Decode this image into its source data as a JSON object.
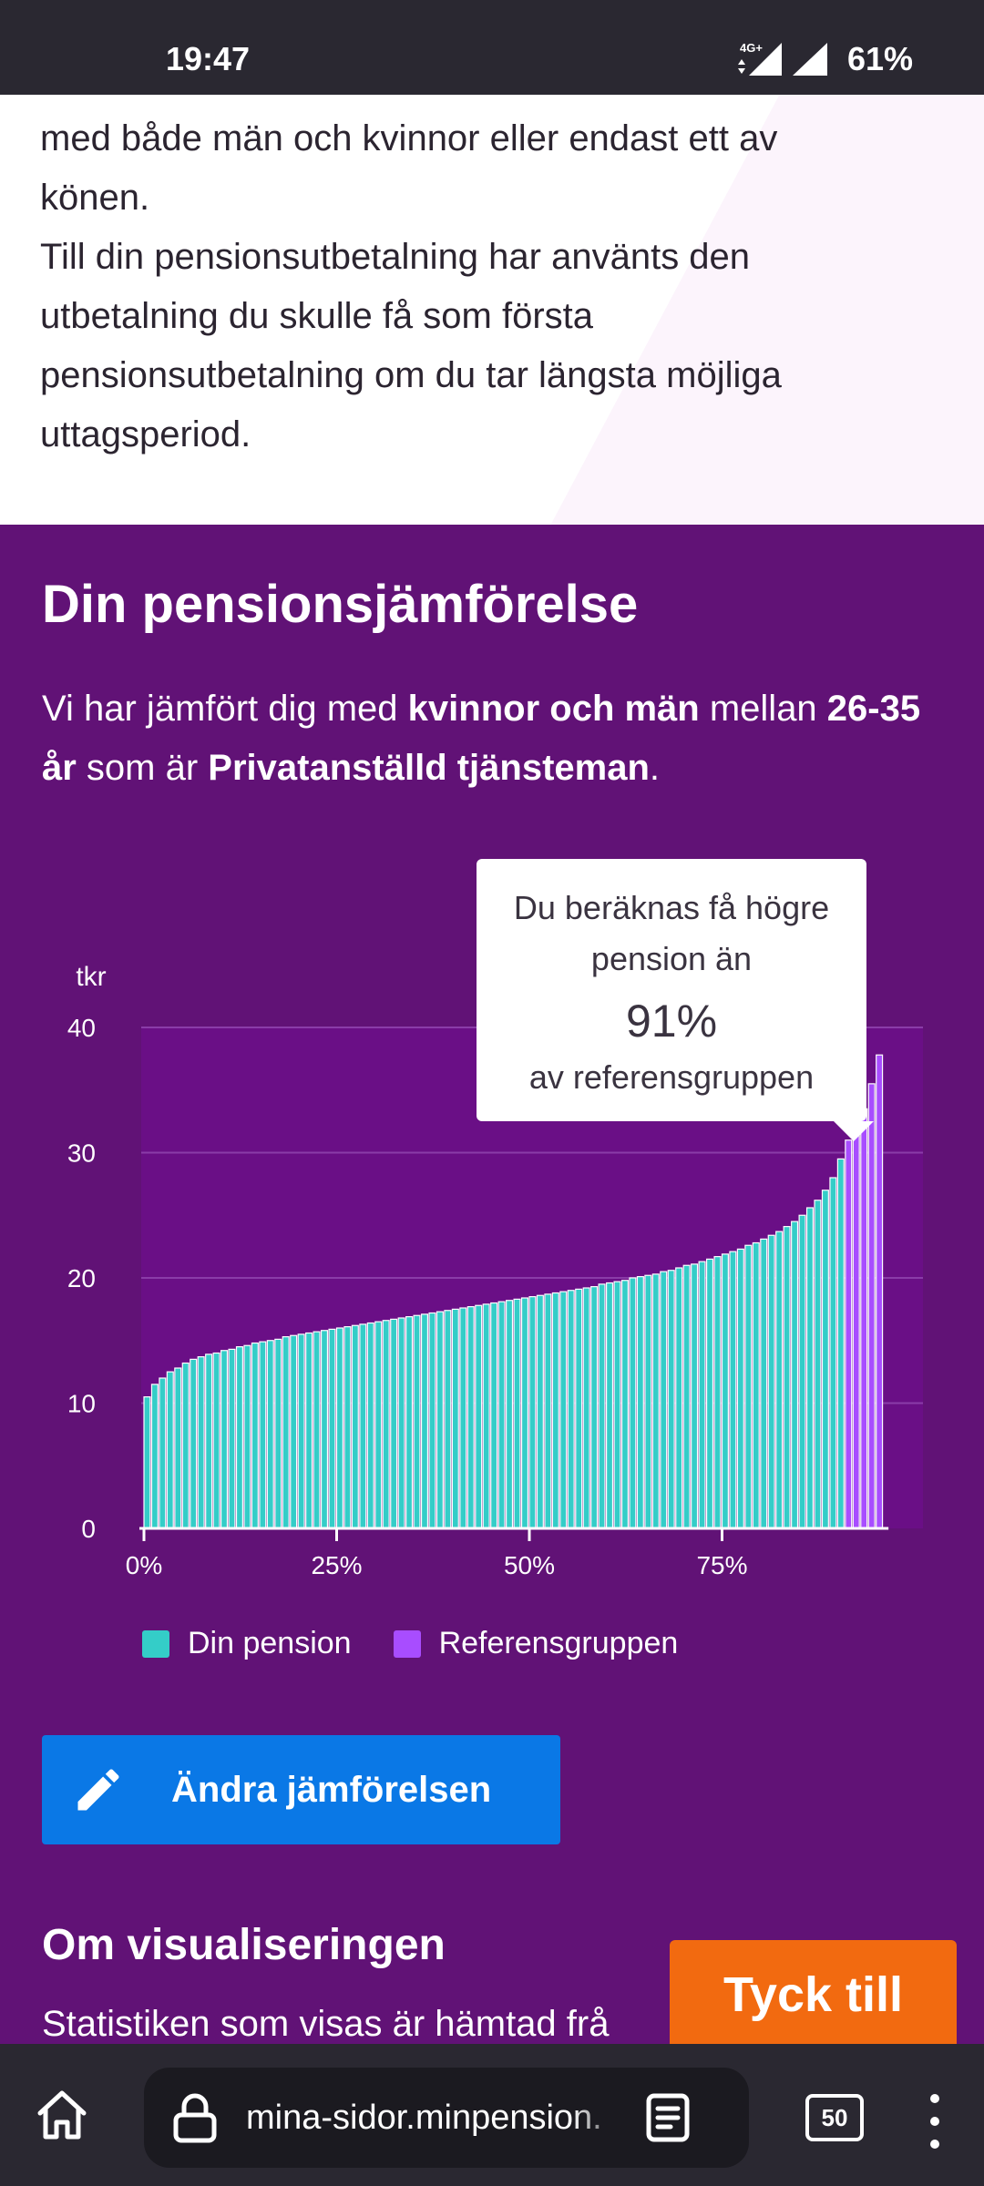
{
  "status_bar": {
    "time": "19:47",
    "network": "4G+",
    "battery": "61%"
  },
  "white_section": {
    "lines": [
      "med både män och kvinnor eller endast ett av",
      "könen.",
      "Till din pensionsutbetalning har använts den",
      "utbetalning du skulle få som första",
      "pensionsutbetalning om du tar längsta möjliga",
      "uttagsperiod."
    ]
  },
  "comparison": {
    "title": "Din pensionsjämförelse",
    "intro": {
      "p1": "Vi har jämfört dig med ",
      "b1": "kvinnor och män",
      "p2": " mellan ",
      "b2": "26-35 år",
      "p3": " som är ",
      "b3": "Privatanställd tjänsteman",
      "p4": "."
    }
  },
  "tooltip": {
    "line1": "Du beräknas få högre",
    "line2": "pension än",
    "percent": "91%",
    "line3": "av referensgruppen"
  },
  "chart_data": {
    "type": "bar",
    "ylabel": "tkr",
    "ylim": [
      0,
      40
    ],
    "yticks": [
      "0",
      "10",
      "20",
      "30",
      "40"
    ],
    "xticks": [
      "0%",
      "25%",
      "50%",
      "75%"
    ],
    "xticks_at": [
      0,
      25,
      50,
      75
    ],
    "grid": true,
    "highlight_from_index": 91,
    "colors": {
      "own": "#34cdc8",
      "ref": "#a84dff",
      "bg": "#6a0f86",
      "grid": "#8a3ca8"
    },
    "series": [
      {
        "name": "Din pension",
        "values": [
          10.5,
          11.5,
          12.0,
          12.5,
          12.8,
          13.2,
          13.5,
          13.7,
          13.9,
          14.0,
          14.2,
          14.3,
          14.5,
          14.6,
          14.8,
          14.9,
          15.0,
          15.1,
          15.3,
          15.4,
          15.5,
          15.6,
          15.7,
          15.8,
          15.9,
          16.0,
          16.1,
          16.2,
          16.3,
          16.4,
          16.5,
          16.6,
          16.7,
          16.8,
          16.9,
          17.0,
          17.1,
          17.2,
          17.3,
          17.4,
          17.5,
          17.6,
          17.7,
          17.8,
          17.9,
          18.0,
          18.1,
          18.2,
          18.3,
          18.4,
          18.5,
          18.6,
          18.7,
          18.8,
          18.9,
          19.0,
          19.1,
          19.2,
          19.3,
          19.5,
          19.6,
          19.7,
          19.8,
          20.0,
          20.1,
          20.2,
          20.3,
          20.5,
          20.6,
          20.8,
          21.0,
          21.1,
          21.3,
          21.5,
          21.7,
          21.9,
          22.1,
          22.3,
          22.6,
          22.8,
          23.1,
          23.4,
          23.7,
          24.1,
          24.5,
          25.0,
          25.6,
          26.2,
          27.0,
          28.0,
          29.5
        ]
      },
      {
        "name": "Referensgruppen",
        "values": [
          31.0,
          32.0,
          33.5,
          35.5,
          37.8
        ]
      }
    ]
  },
  "legend": {
    "own": "Din pension",
    "ref": "Referensgruppen"
  },
  "edit_button": {
    "label": "Ändra jämförelsen"
  },
  "about": {
    "title": "Om visualiseringen",
    "text": "Statistiken som visas är hämtad frå"
  },
  "feedback_button": {
    "label": "Tyck till"
  },
  "browser": {
    "url": "mina-sidor.minpension.",
    "tab_count": "50"
  }
}
